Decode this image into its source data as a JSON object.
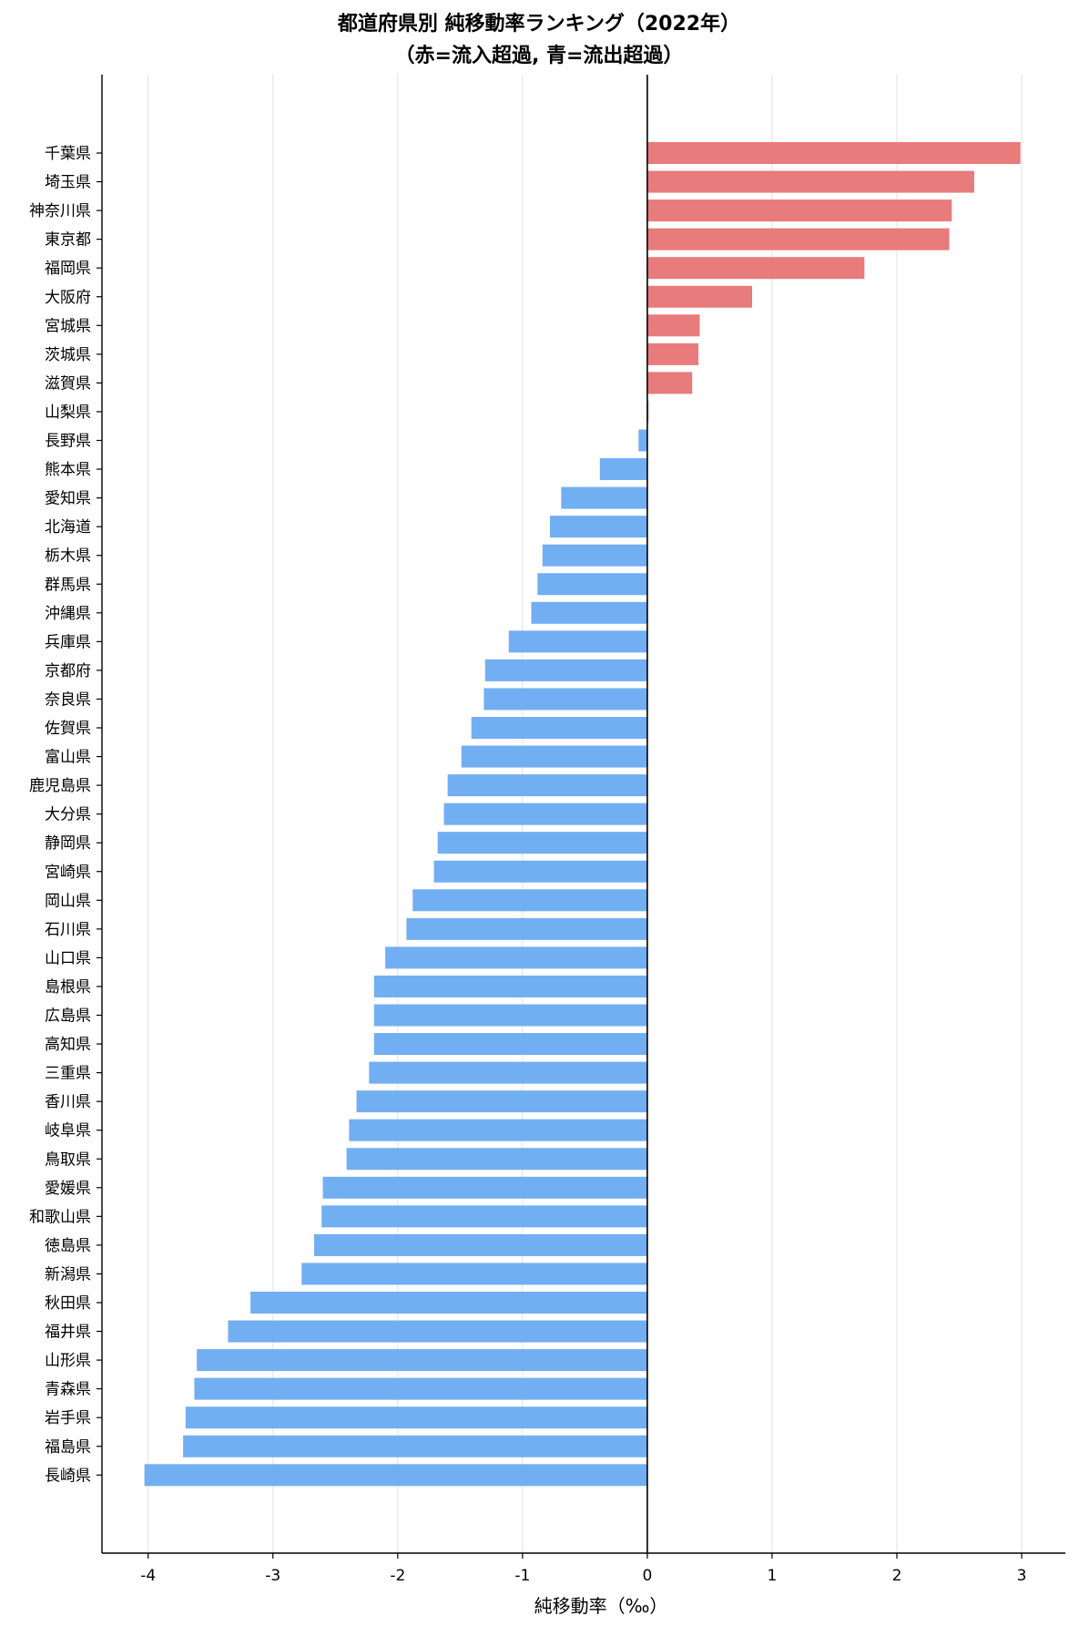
{
  "chart_data": {
    "type": "bar",
    "orientation": "horizontal",
    "title": "都道府県別 純移動率ランキング（2022年）",
    "subtitle": "（赤=流入超過, 青=流出超過）",
    "xlabel": "純移動率（‰）",
    "ylabel": "",
    "xlim": [
      -4.37,
      3.35
    ],
    "xticks": [
      -4,
      -3,
      -2,
      -1,
      0,
      1,
      2,
      3
    ],
    "grid": "vertical",
    "colors": {
      "positive": "#e87b7b",
      "negative": "#72aef2",
      "zero_line": "#000000",
      "grid": "#e6e6e6"
    },
    "categories": [
      "千葉県",
      "埼玉県",
      "神奈川県",
      "東京都",
      "福岡県",
      "大阪府",
      "宮城県",
      "茨城県",
      "滋賀県",
      "山梨県",
      "長野県",
      "熊本県",
      "愛知県",
      "北海道",
      "栃木県",
      "群馬県",
      "沖縄県",
      "兵庫県",
      "京都府",
      "奈良県",
      "佐賀県",
      "富山県",
      "鹿児島県",
      "大分県",
      "静岡県",
      "宮崎県",
      "岡山県",
      "石川県",
      "山口県",
      "島根県",
      "広島県",
      "高知県",
      "三重県",
      "香川県",
      "岐阜県",
      "鳥取県",
      "愛媛県",
      "和歌山県",
      "徳島県",
      "新潟県",
      "秋田県",
      "福井県",
      "山形県",
      "青森県",
      "岩手県",
      "福島県",
      "長崎県"
    ],
    "values": [
      2.99,
      2.62,
      2.44,
      2.42,
      1.74,
      0.84,
      0.42,
      0.41,
      0.36,
      0.01,
      -0.07,
      -0.38,
      -0.69,
      -0.78,
      -0.84,
      -0.88,
      -0.93,
      -1.11,
      -1.3,
      -1.31,
      -1.41,
      -1.49,
      -1.6,
      -1.63,
      -1.68,
      -1.71,
      -1.88,
      -1.93,
      -2.1,
      -2.19,
      -2.19,
      -2.19,
      -2.23,
      -2.33,
      -2.39,
      -2.41,
      -2.6,
      -2.61,
      -2.67,
      -2.77,
      -3.18,
      -3.36,
      -3.61,
      -3.63,
      -3.7,
      -3.72,
      -4.03
    ]
  }
}
